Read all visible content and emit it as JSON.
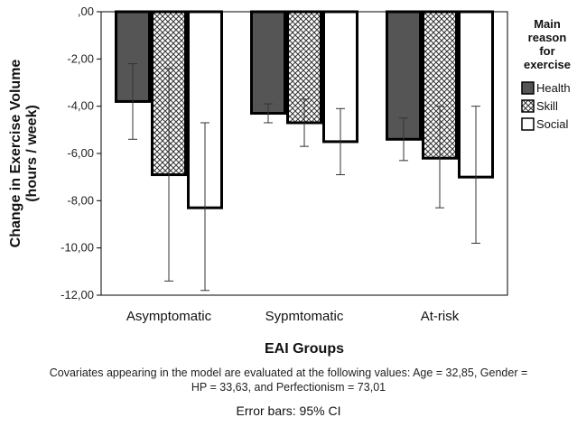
{
  "chart_data": {
    "type": "bar",
    "categories": [
      "Asymptomatic",
      "Sypmtomatic",
      "At-risk"
    ],
    "series": [
      {
        "name": "Health",
        "values": [
          -3.8,
          -4.3,
          -5.4
        ],
        "ci_low": [
          -5.4,
          -4.7,
          -6.3
        ],
        "ci_high": [
          -2.2,
          -3.9,
          -4.5
        ],
        "fill": "#555555",
        "pattern": "solid"
      },
      {
        "name": "Skill",
        "values": [
          -6.9,
          -4.7,
          -6.2
        ],
        "ci_low": [
          -11.4,
          -5.7,
          -8.3
        ],
        "ci_high": [
          -2.4,
          -3.7,
          -4.0
        ],
        "fill": "#ffffff",
        "pattern": "crosshatch"
      },
      {
        "name": "Social",
        "values": [
          -8.3,
          -5.5,
          -7.0
        ],
        "ci_low": [
          -11.8,
          -6.9,
          -9.8
        ],
        "ci_high": [
          -4.7,
          -4.1,
          -4.0
        ],
        "fill": "#ffffff",
        "pattern": "solid"
      }
    ],
    "ylim": [
      -12,
      0
    ],
    "yticks": [
      0,
      -2,
      -4,
      -6,
      -8,
      -10,
      -12
    ],
    "ytick_labels": [
      ",00",
      "-2,00",
      "-4,00",
      "-6,00",
      "-8,00",
      "-10,00",
      "-12,00"
    ],
    "ylabel_line1": "Change in Exercise Volume",
    "ylabel_line2": "(hours / week)",
    "xlabel": "EAI Groups",
    "legend_title": [
      "Main",
      "reason",
      "for",
      "exercise"
    ],
    "legend_position": "top-right",
    "grid": false
  },
  "footnote": {
    "covariates_line1": "Covariates appearing in the model are evaluated at the following values: Age = 32,85, Gender =",
    "covariates_line2": "HP = 33,63, and Perfectionism = 73,01",
    "error_bars": "Error bars: 95% CI"
  }
}
